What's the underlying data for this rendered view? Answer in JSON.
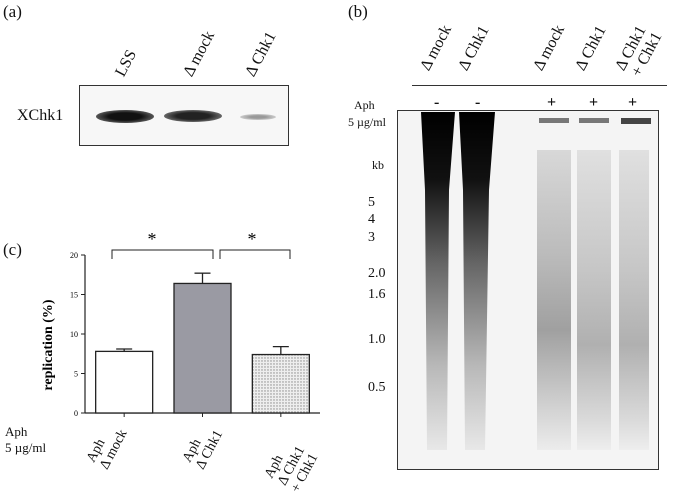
{
  "panels": {
    "a": {
      "label": "(a)",
      "lanes": [
        "LSS",
        "Δ mock",
        "Δ Chk1"
      ],
      "row_label": "XChk1"
    },
    "b": {
      "label": "(b)",
      "lanes": [
        "Δ mock",
        "Δ Chk1",
        "Δ mock",
        "Δ Chk1",
        "Δ Chk1",
        "+ Chk1"
      ],
      "aph_label": "Aph",
      "conc_label": "5 µg/ml",
      "aph_signs": [
        "-",
        "-",
        "+",
        "+",
        "+"
      ],
      "kb_label": "kb",
      "markers": [
        "5",
        "4",
        "3",
        "2.0",
        "1.6",
        "1.0",
        "0.5"
      ]
    },
    "c": {
      "label": "(c)",
      "significance": [
        "*",
        "*"
      ],
      "aph_label": "Aph",
      "conc_label": "5 µg/ml",
      "bar_labels": [
        {
          "line1": "Aph",
          "line2": "Δ mock",
          "line3": ""
        },
        {
          "line1": "Aph",
          "line2": "Δ Chk1",
          "line3": ""
        },
        {
          "line1": "Aph",
          "line2": "Δ Chk1",
          "line3": "+ Chk1"
        }
      ]
    }
  },
  "chart_data": {
    "type": "bar",
    "categories": [
      "Aph Δ mock",
      "Aph Δ Chk1",
      "Aph Δ Chk1 + Chk1"
    ],
    "values": [
      7.8,
      16.4,
      7.4
    ],
    "errors": [
      0.3,
      1.3,
      1.0
    ],
    "ylabel": "replication (%)",
    "ylim": [
      0,
      20
    ],
    "yticks": [
      "0",
      "5",
      "10",
      "15",
      "20"
    ],
    "bar_fills": [
      "#ffffff",
      "#9a9aa3",
      "#d8d8d8"
    ],
    "grid": false
  }
}
